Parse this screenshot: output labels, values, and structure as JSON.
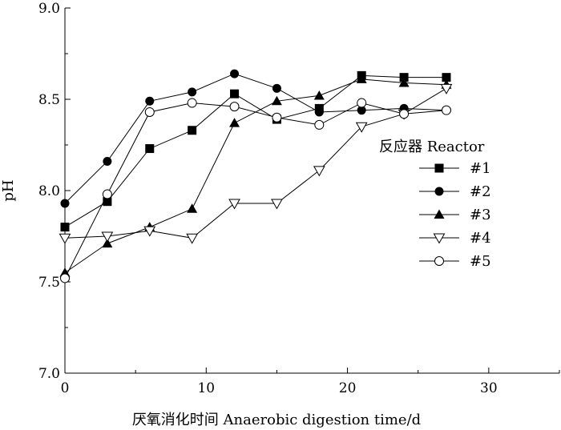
{
  "chart_data": {
    "type": "line",
    "title": "",
    "xlabel": "厌氧消化时间 Anaerobic digestion time/d",
    "ylabel": "pH",
    "xlim": [
      0,
      35
    ],
    "ylim": [
      7.0,
      9.0
    ],
    "x_ticks": [
      "0",
      "10",
      "20",
      "30"
    ],
    "y_ticks": [
      "7.0",
      "7.5",
      "8.0",
      "8.5",
      "9.0"
    ],
    "grid": false,
    "legend": {
      "title": "反应器 Reactor",
      "placement": "right"
    },
    "series": [
      {
        "name": "#1",
        "marker": "square-filled",
        "x": [
          0,
          3,
          6,
          9,
          12,
          15,
          18,
          21,
          24,
          27
        ],
        "y": [
          7.8,
          7.94,
          8.23,
          8.33,
          8.53,
          8.39,
          8.45,
          8.63,
          8.62,
          8.62
        ]
      },
      {
        "name": "#2",
        "marker": "circle-filled",
        "x": [
          0,
          3,
          6,
          9,
          12,
          15,
          18,
          21,
          24,
          27
        ],
        "y": [
          7.93,
          8.16,
          8.49,
          8.54,
          8.64,
          8.56,
          8.43,
          8.44,
          8.45,
          8.44
        ]
      },
      {
        "name": "#3",
        "marker": "triangle-up-filled",
        "x": [
          0,
          3,
          6,
          9,
          12,
          15,
          18,
          21,
          24,
          27
        ],
        "y": [
          7.55,
          7.71,
          7.8,
          7.9,
          8.37,
          8.49,
          8.52,
          8.61,
          8.59,
          8.58
        ]
      },
      {
        "name": "#4",
        "marker": "triangle-down-open",
        "x": [
          0,
          3,
          6,
          9,
          12,
          15,
          18,
          21,
          24,
          27
        ],
        "y": [
          7.74,
          7.75,
          7.78,
          7.74,
          7.93,
          7.93,
          8.11,
          8.35,
          8.42,
          8.56
        ]
      },
      {
        "name": "#5",
        "marker": "circle-open",
        "x": [
          0,
          3,
          6,
          9,
          12,
          15,
          18,
          21,
          24,
          27
        ],
        "y": [
          7.52,
          7.98,
          8.43,
          8.48,
          8.46,
          8.4,
          8.36,
          8.48,
          8.42,
          8.44
        ]
      }
    ]
  }
}
